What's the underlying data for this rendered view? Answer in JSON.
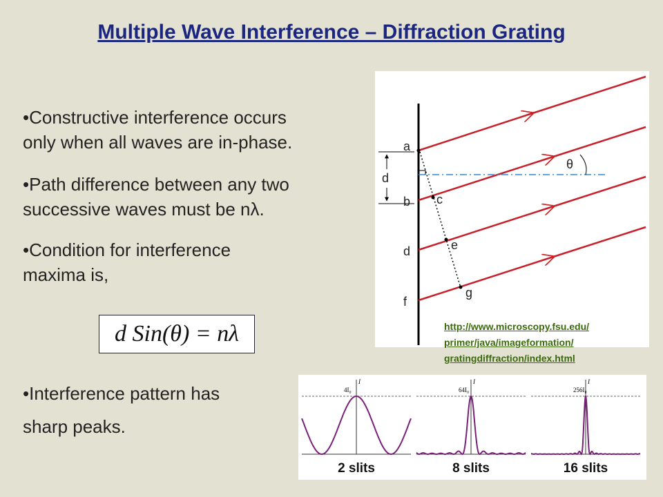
{
  "header": {
    "title": "Multiple Wave Interference – Diffraction Grating"
  },
  "bullets": [
    {
      "lines": [
        "•Constructive interference occurs",
        "only when all waves are in-phase."
      ]
    },
    {
      "lines": [
        "•Path difference between any two",
        "successive waves must be nλ."
      ]
    },
    {
      "lines": [
        "•Condition for interference",
        "maxima is,"
      ]
    },
    {
      "lines": [
        "•Interference pattern has",
        " sharp peaks."
      ]
    }
  ],
  "equation": "d Sin(θ) = nλ",
  "diagram": {
    "labels": {
      "a": "a",
      "b": "b",
      "d_slit": "d",
      "f": "f",
      "c": "c",
      "e": "e",
      "g": "g",
      "theta": "θ",
      "spacing": "d"
    }
  },
  "link": {
    "lines": [
      "http://www.microscopy.fsu.edu/",
      "primer/java/imageformation/",
      "gratingdiffraction/index.html"
    ]
  },
  "plots": [
    {
      "caption": "2 slits",
      "peak_label": "4I₀",
      "axis_label": "I"
    },
    {
      "caption": "8 slits",
      "peak_label": "64I₀",
      "axis_label": "I"
    },
    {
      "caption": "16 slits",
      "peak_label": "256I₀",
      "axis_label": "I"
    }
  ]
}
